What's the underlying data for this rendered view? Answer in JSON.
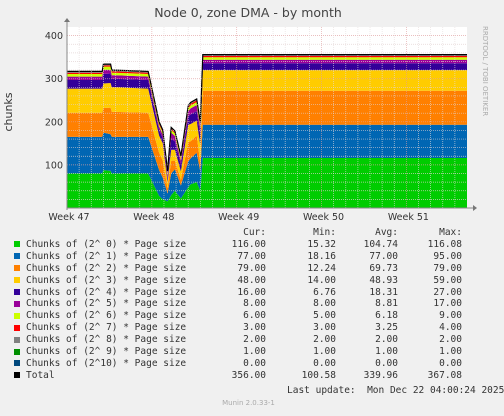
{
  "page": {
    "side_label": "RRDTOOL / TOBI OETIKER",
    "footer": "Munin 2.0.33-1",
    "last_update": "Last update:  Mon Dec 22 04:00:24 2025"
  },
  "legend": {
    "headers": [
      "Cur:",
      "Min:",
      "Avg:",
      "Max:"
    ],
    "rows": [
      {
        "label": "Chunks of (2^ 0) * Page size",
        "color": "#00cc00",
        "cur": "116.00",
        "min": "15.32",
        "avg": "104.74",
        "max": "116.08"
      },
      {
        "label": "Chunks of (2^ 1) * Page size",
        "color": "#0066b3",
        "cur": "77.00",
        "min": "18.16",
        "avg": "77.00",
        "max": "95.00"
      },
      {
        "label": "Chunks of (2^ 2) * Page size",
        "color": "#ff8000",
        "cur": "79.00",
        "min": "12.24",
        "avg": "69.73",
        "max": "79.00"
      },
      {
        "label": "Chunks of (2^ 3) * Page size",
        "color": "#ffcc00",
        "cur": "48.00",
        "min": "14.00",
        "avg": "48.93",
        "max": "59.00"
      },
      {
        "label": "Chunks of (2^ 4) * Page size",
        "color": "#330099",
        "cur": "16.00",
        "min": "6.76",
        "avg": "18.31",
        "max": "27.00"
      },
      {
        "label": "Chunks of (2^ 5) * Page size",
        "color": "#990099",
        "cur": "8.00",
        "min": "8.00",
        "avg": "8.81",
        "max": "17.00"
      },
      {
        "label": "Chunks of (2^ 6) * Page size",
        "color": "#ccff00",
        "cur": "6.00",
        "min": "5.00",
        "avg": "6.18",
        "max": "9.00"
      },
      {
        "label": "Chunks of (2^ 7) * Page size",
        "color": "#ff0000",
        "cur": "3.00",
        "min": "3.00",
        "avg": "3.25",
        "max": "4.00"
      },
      {
        "label": "Chunks of (2^ 8) * Page size",
        "color": "#808080",
        "cur": "2.00",
        "min": "2.00",
        "avg": "2.00",
        "max": "2.00"
      },
      {
        "label": "Chunks of (2^ 9) * Page size",
        "color": "#008f00",
        "cur": "1.00",
        "min": "1.00",
        "avg": "1.00",
        "max": "1.00"
      },
      {
        "label": "Chunks of (2^10) * Page size",
        "color": "#00487d",
        "cur": "0.00",
        "min": "0.00",
        "avg": "0.00",
        "max": "0.00"
      },
      {
        "label": "Total",
        "color": "#000000",
        "cur": "356.00",
        "min": "100.58",
        "avg": "339.96",
        "max": "367.08"
      }
    ]
  },
  "chart_data": {
    "type": "area",
    "title": "Node 0, zone DMA - by month",
    "ylabel": "chunks",
    "xlabel": "",
    "x_range": [
      0,
      33
    ],
    "ylim": [
      0,
      420
    ],
    "yticks": [
      100,
      200,
      300,
      400
    ],
    "x_ticks": [
      {
        "label": "Week 47",
        "x": 0
      },
      {
        "label": "Week 48",
        "x": 7
      },
      {
        "label": "Week 49",
        "x": 14
      },
      {
        "label": "Week 50",
        "x": 21
      },
      {
        "label": "Week 51",
        "x": 28
      }
    ],
    "grid": true,
    "x": [
      -1.4,
      2.9,
      3.0,
      3.6,
      3.7,
      4.0,
      6.7,
      7.6,
      7.9,
      8.3,
      8.5,
      8.6,
      8.9,
      9.4,
      10.0,
      10.2,
      10.7,
      11.0,
      11.2,
      11.8,
      33.0
    ],
    "series": [
      {
        "name": "Chunks of (2^ 0) * Page size",
        "color": "#00cc00",
        "values": [
          80,
          80,
          88,
          86,
          80,
          80,
          80,
          28,
          20,
          15.3,
          25,
          30,
          40,
          22,
          48,
          55,
          60,
          40,
          116,
          116,
          116
        ]
      },
      {
        "name": "Chunks of (2^ 1) * Page size",
        "color": "#0066b3",
        "values": [
          85,
          85,
          87,
          85,
          85,
          85,
          85,
          60,
          50,
          18.2,
          40,
          50,
          50,
          30,
          60,
          60,
          68,
          45,
          77,
          77,
          77
        ]
      },
      {
        "name": "Chunks of (2^ 2) * Page size",
        "color": "#ff8000",
        "values": [
          56,
          56,
          57,
          62,
          58,
          58,
          56,
          40,
          40,
          12.2,
          25,
          30,
          20,
          13,
          45,
          40,
          40,
          20,
          79,
          79,
          79
        ]
      },
      {
        "name": "Chunks of (2^ 3) * Page size",
        "color": "#ffcc00",
        "values": [
          56,
          56,
          57,
          57,
          57,
          57,
          56,
          40,
          40,
          14,
          22,
          25,
          25,
          20,
          40,
          40,
          35,
          40,
          48,
          48,
          48
        ]
      },
      {
        "name": "Chunks of (2^ 4) * Page size",
        "color": "#330099",
        "values": [
          20,
          20,
          22,
          22,
          20,
          20,
          20,
          13,
          12,
          7,
          20,
          25,
          20,
          15,
          20,
          22,
          22,
          25,
          16,
          16,
          16
        ]
      },
      {
        "name": "Chunks of (2^ 5) * Page size",
        "color": "#990099",
        "values": [
          8,
          8,
          10,
          9,
          8,
          8,
          8,
          8,
          8,
          8,
          12,
          15,
          12,
          10,
          12,
          14,
          14,
          15,
          8,
          8,
          8
        ]
      },
      {
        "name": "Chunks of (2^ 6) * Page size",
        "color": "#ccff00",
        "values": [
          6,
          6,
          7,
          7,
          6,
          6,
          6,
          5,
          5,
          5,
          6,
          6,
          6,
          5,
          6,
          7,
          7,
          7,
          6,
          6,
          6
        ]
      },
      {
        "name": "Chunks of (2^ 7) * Page size",
        "color": "#ff0000",
        "values": [
          3,
          3,
          3,
          3,
          3,
          3,
          3,
          3,
          3,
          3,
          3,
          3,
          3,
          3,
          3,
          4,
          4,
          4,
          3,
          3,
          3
        ]
      },
      {
        "name": "Chunks of (2^ 8) * Page size",
        "color": "#808080",
        "values": [
          2,
          2,
          2,
          2,
          2,
          2,
          2,
          2,
          2,
          2,
          2,
          2,
          2,
          2,
          2,
          2,
          2,
          2,
          2,
          2,
          2
        ]
      },
      {
        "name": "Chunks of (2^ 9) * Page size",
        "color": "#008f00",
        "values": [
          1,
          1,
          1,
          1,
          1,
          1,
          1,
          1,
          1,
          1,
          1,
          1,
          1,
          1,
          1,
          1,
          1,
          1,
          1,
          1,
          1
        ]
      },
      {
        "name": "Chunks of (2^10) * Page size",
        "color": "#00487d",
        "values": [
          0,
          0,
          0,
          0,
          0,
          0,
          0,
          0,
          0,
          0,
          0,
          0,
          0,
          0,
          0,
          0,
          0,
          0,
          0,
          0,
          0
        ]
      }
    ],
    "total_color": "#000000"
  }
}
